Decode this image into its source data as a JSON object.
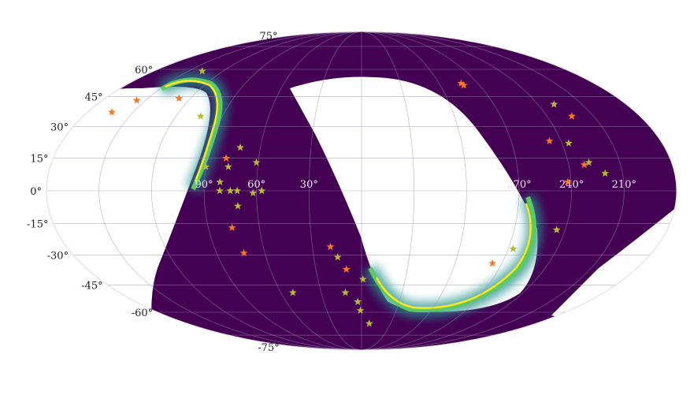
{
  "chart_data": {
    "type": "scatter",
    "projection": "mollweide",
    "title": "",
    "xlabel": "",
    "ylabel": "",
    "grid": true,
    "legend": "none",
    "colors": {
      "background_density": "#440154",
      "band_mid": "#21918c",
      "band_bright": "#5ec962",
      "band_peak": "#fde725",
      "orange_star": "#f7761e",
      "yellow_star": "#b5b93a",
      "grid": "#9b8fb0",
      "axis_text": "#222222"
    },
    "lon_tick_labels": [
      "90°",
      "60°",
      "30°",
      "270°",
      "240°",
      "210°"
    ],
    "lat_tick_labels": [
      "75°",
      "60°",
      "45°",
      "30°",
      "15°",
      "0°",
      "-15°",
      "-30°",
      "-45°",
      "-60°",
      "-75°"
    ],
    "lon_ticks": [
      90,
      60,
      30,
      270,
      240,
      210
    ],
    "lat_ticks": [
      75,
      60,
      45,
      30,
      15,
      0,
      -15,
      -30,
      -45,
      -60,
      -75
    ],
    "series": [
      {
        "marker": "star",
        "color": "#f7761e",
        "points": [
          {
            "ra": 156,
            "dec": 43
          },
          {
            "ra": 128,
            "dec": 44
          },
          {
            "ra": 283,
            "dec": 52
          },
          {
            "ra": 282,
            "dec": 51
          },
          {
            "ra": 224,
            "dec": 35
          },
          {
            "ra": 247,
            "dec": 23
          },
          {
            "ra": 231,
            "dec": 12
          },
          {
            "ra": 242,
            "dec": 4
          },
          {
            "ra": 79,
            "dec": 15
          },
          {
            "ra": 76,
            "dec": -17
          },
          {
            "ra": 73,
            "dec": -29
          },
          {
            "ra": 19,
            "dec": -26
          },
          {
            "ra": 10,
            "dec": -37
          },
          {
            "ra": 276,
            "dec": -34
          },
          {
            "ra": 164,
            "dec": 37
          }
        ]
      },
      {
        "marker": "star",
        "color": "#b5b93a",
        "points": [
          {
            "ra": 138,
            "dec": 59
          },
          {
            "ra": 104,
            "dec": 35
          },
          {
            "ra": 229,
            "dec": 41
          },
          {
            "ra": 236,
            "dec": 22
          },
          {
            "ra": 228,
            "dec": 13
          },
          {
            "ra": 220,
            "dec": 8
          },
          {
            "ra": 72,
            "dec": 20
          },
          {
            "ra": 77,
            "dec": 11
          },
          {
            "ra": 61,
            "dec": 13
          },
          {
            "ra": 90,
            "dec": 11
          },
          {
            "ra": 81,
            "dec": 4
          },
          {
            "ra": 81,
            "dec": 0
          },
          {
            "ra": 75,
            "dec": 0
          },
          {
            "ra": 71,
            "dec": 0
          },
          {
            "ra": 57,
            "dec": 0
          },
          {
            "ra": 62,
            "dec": -1
          },
          {
            "ra": 71,
            "dec": -7
          },
          {
            "ra": 245,
            "dec": -18
          },
          {
            "ra": 267,
            "dec": -27
          },
          {
            "ra": 15,
            "dec": -31
          },
          {
            "ra": 359,
            "dec": -42
          },
          {
            "ra": 12,
            "dec": -49
          },
          {
            "ra": 3,
            "dec": -54
          },
          {
            "ra": 1,
            "dec": -59
          },
          {
            "ra": 352,
            "dec": -67
          },
          {
            "ra": 51,
            "dec": -49
          }
        ]
      }
    ]
  }
}
